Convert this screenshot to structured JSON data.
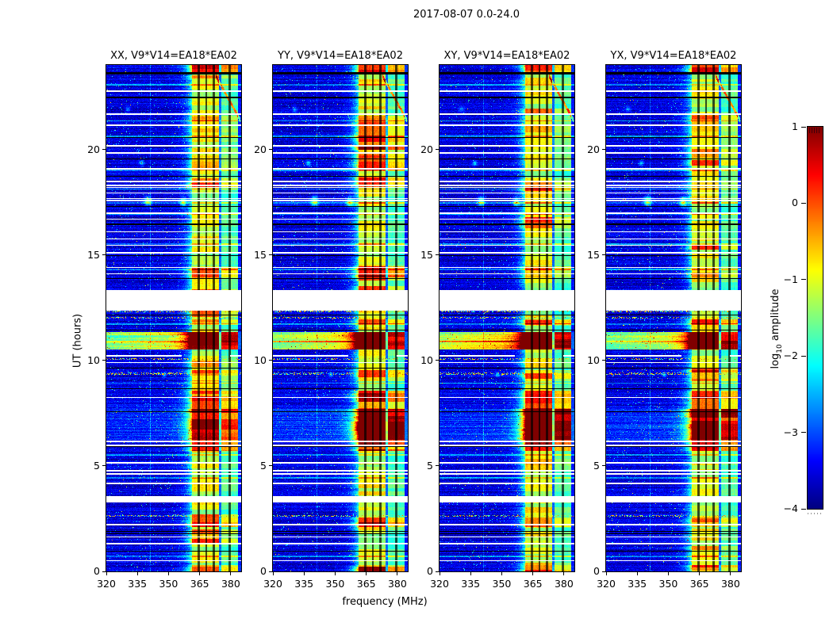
{
  "title": "2017-08-07 0.0-24.0",
  "chart_data": {
    "type": "heatmap",
    "title": "2017-08-07 0.0-24.0",
    "panels": [
      {
        "label": "XX, V9*V14=EA18*EA02",
        "correlation": "XX"
      },
      {
        "label": "YY, V9*V14=EA18*EA02",
        "correlation": "YY"
      },
      {
        "label": "XY, V9*V14=EA18*EA02",
        "correlation": "XY"
      },
      {
        "label": "YX, V9*V14=EA18*EA02",
        "correlation": "YX"
      }
    ],
    "x_axis": {
      "label": "frequency (MHz)",
      "ticks": [
        320,
        335,
        350,
        365,
        380
      ],
      "range": [
        320,
        385
      ]
    },
    "y_axis": {
      "label": "UT (hours)",
      "ticks": [
        0,
        5,
        10,
        15,
        20
      ],
      "range": [
        0,
        24
      ]
    },
    "colorbar": {
      "label_prefix": "log",
      "label_sub": "10",
      "label_suffix": " amplitude",
      "ticks": [
        1,
        0,
        -1,
        -2,
        -3,
        -4
      ],
      "range": [
        -4,
        1
      ],
      "colormap": "jet"
    },
    "features": {
      "background_level": -3.55,
      "rfi_band_a_mhz": [
        361.3,
        374.2
      ],
      "rfi_band_b_mhz": [
        375.6,
        383.5
      ],
      "flagged_channels_mhz": [
        364.5,
        368.2,
        371.8,
        379.4
      ],
      "faint_channel_mhz": 341.2,
      "white_gaps": [
        [
          22.78,
          0.07
        ],
        [
          21.72,
          0.07
        ],
        [
          21.17,
          0.06
        ],
        [
          20.22,
          0.07
        ],
        [
          19.87,
          0.06
        ],
        [
          19.12,
          0.07
        ],
        [
          18.52,
          0.06
        ],
        [
          18.32,
          0.05
        ],
        [
          18.22,
          0.05
        ],
        [
          17.97,
          0.06
        ],
        [
          17.7,
          0.05
        ],
        [
          17.6,
          0.05
        ],
        [
          17.02,
          0.07
        ],
        [
          16.73,
          0.06
        ],
        [
          16.12,
          0.06
        ],
        [
          15.77,
          0.05
        ],
        [
          15.47,
          0.05
        ],
        [
          15.13,
          0.06
        ],
        [
          14.43,
          0.05
        ],
        [
          14.12,
          0.05
        ],
        [
          13.32,
          0.95
        ],
        [
          10.27,
          0.1,
          1
        ],
        [
          9.93,
          0.05
        ],
        [
          8.28,
          0.07
        ],
        [
          6.2,
          0.06
        ],
        [
          6.0,
          0.05
        ],
        [
          5.17,
          0.07
        ],
        [
          4.8,
          0.05
        ],
        [
          4.64,
          0.05
        ],
        [
          4.2,
          0.07
        ],
        [
          3.55,
          0.3
        ],
        [
          2.24,
          0.06
        ],
        [
          1.66,
          0.06
        ],
        [
          1.34,
          0.05
        ],
        [
          0.54,
          0.04
        ]
      ],
      "black_lines": [
        [
          23.66,
          0.11
        ],
        [
          22.48,
          0.04
        ],
        [
          20.57,
          0.04
        ],
        [
          19.57,
          0.04
        ],
        [
          18.74,
          0.04
        ],
        [
          17.32,
          0.04
        ],
        [
          16.47,
          0.04
        ],
        [
          14.97,
          0.04
        ],
        [
          13.9,
          0.04
        ],
        [
          12.17,
          0.05
        ],
        [
          11.47,
          0.04
        ],
        [
          9.64,
          0.04
        ],
        [
          8.67,
          0.04
        ],
        [
          7.58,
          0.04
        ],
        [
          5.94,
          0.04
        ],
        [
          1.9,
          0.04
        ],
        [
          1.8,
          0.04
        ],
        [
          0.97,
          0.04
        ]
      ],
      "bright_rows": [
        23.05,
        21.35,
        20.62,
        19.02,
        18.12,
        17.47,
        16.92,
        15.52,
        14.32,
        11.72,
        8.92,
        5.52,
        4.42,
        0.72
      ],
      "speckle_rows": [
        12.32,
        12.02,
        10.07,
        9.37,
        2.62
      ],
      "bursts": [
        {
          "t": [
            10.5,
            11.35
          ],
          "full": [
            3.0,
            2.9,
            3.4,
            2.85
          ],
          "band": [
            2.5,
            2.6,
            2.8,
            2.6
          ]
        },
        {
          "t": [
            10.84,
            10.94
          ],
          "full": [
            1.2,
            1.2,
            1.4,
            1.2
          ],
          "band": [
            0.4,
            0.4,
            0.4,
            0.4
          ]
        },
        {
          "t": [
            6.25,
            7.7
          ],
          "full": [
            0.45,
            0.55,
            0.5,
            0.5
          ],
          "band": [
            2.1,
            2.9,
            2.6,
            2.6
          ]
        },
        {
          "t": [
            5.7,
            6.25
          ],
          "full": [
            0.1,
            0.1,
            0.1,
            0.1
          ],
          "band": [
            1.4,
            1.6,
            1.5,
            1.5
          ]
        },
        {
          "t": [
            7.7,
            8.55
          ],
          "full": [
            0.1,
            0.1,
            0.1,
            0.1
          ],
          "band": [
            1.1,
            1.3,
            1.2,
            1.2
          ]
        }
      ],
      "band_hot": [
        {
          "t": [
            23.55,
            24.0
          ],
          "add": [
            1.3,
            1.3,
            1.2,
            1.3
          ]
        },
        {
          "t": [
            19.0,
            21.6
          ],
          "add": [
            0.35,
            0.9,
            0.35,
            0.45
          ]
        },
        {
          "t": [
            18.2,
            18.65
          ],
          "add": [
            0.4,
            1.0,
            0.5,
            0.4
          ]
        },
        {
          "t": [
            13.95,
            14.45
          ],
          "add": [
            0.7,
            1.4,
            0.8,
            0.7
          ]
        },
        {
          "t": [
            11.7,
            11.95
          ],
          "add": [
            1.0,
            1.0,
            1.0,
            1.0
          ]
        },
        {
          "t": [
            9.0,
            9.55
          ],
          "add": [
            0.7,
            0.8,
            0.7,
            0.7
          ]
        },
        {
          "t": [
            2.1,
            2.55
          ],
          "add": [
            0.9,
            0.9,
            0.8,
            0.8
          ]
        },
        {
          "t": [
            0.0,
            0.3
          ],
          "add": [
            0.9,
            0.9,
            0.8,
            0.9
          ]
        }
      ],
      "blobs": [
        [
          340,
          17.55,
          1.2,
          0.15,
          2.1
        ],
        [
          357,
          17.5,
          1.0,
          0.13,
          1.9
        ],
        [
          337,
          19.35,
          0.8,
          0.09,
          1.2
        ],
        [
          348,
          9.32,
          0.8,
          0.08,
          1.1
        ],
        [
          330.5,
          21.9,
          0.9,
          0.09,
          0.9
        ]
      ],
      "diagonal": {
        "f0": 373.2,
        "t0": 23.4,
        "f1": 384.5,
        "t1": 21.4,
        "amp": 1.5
      }
    }
  }
}
